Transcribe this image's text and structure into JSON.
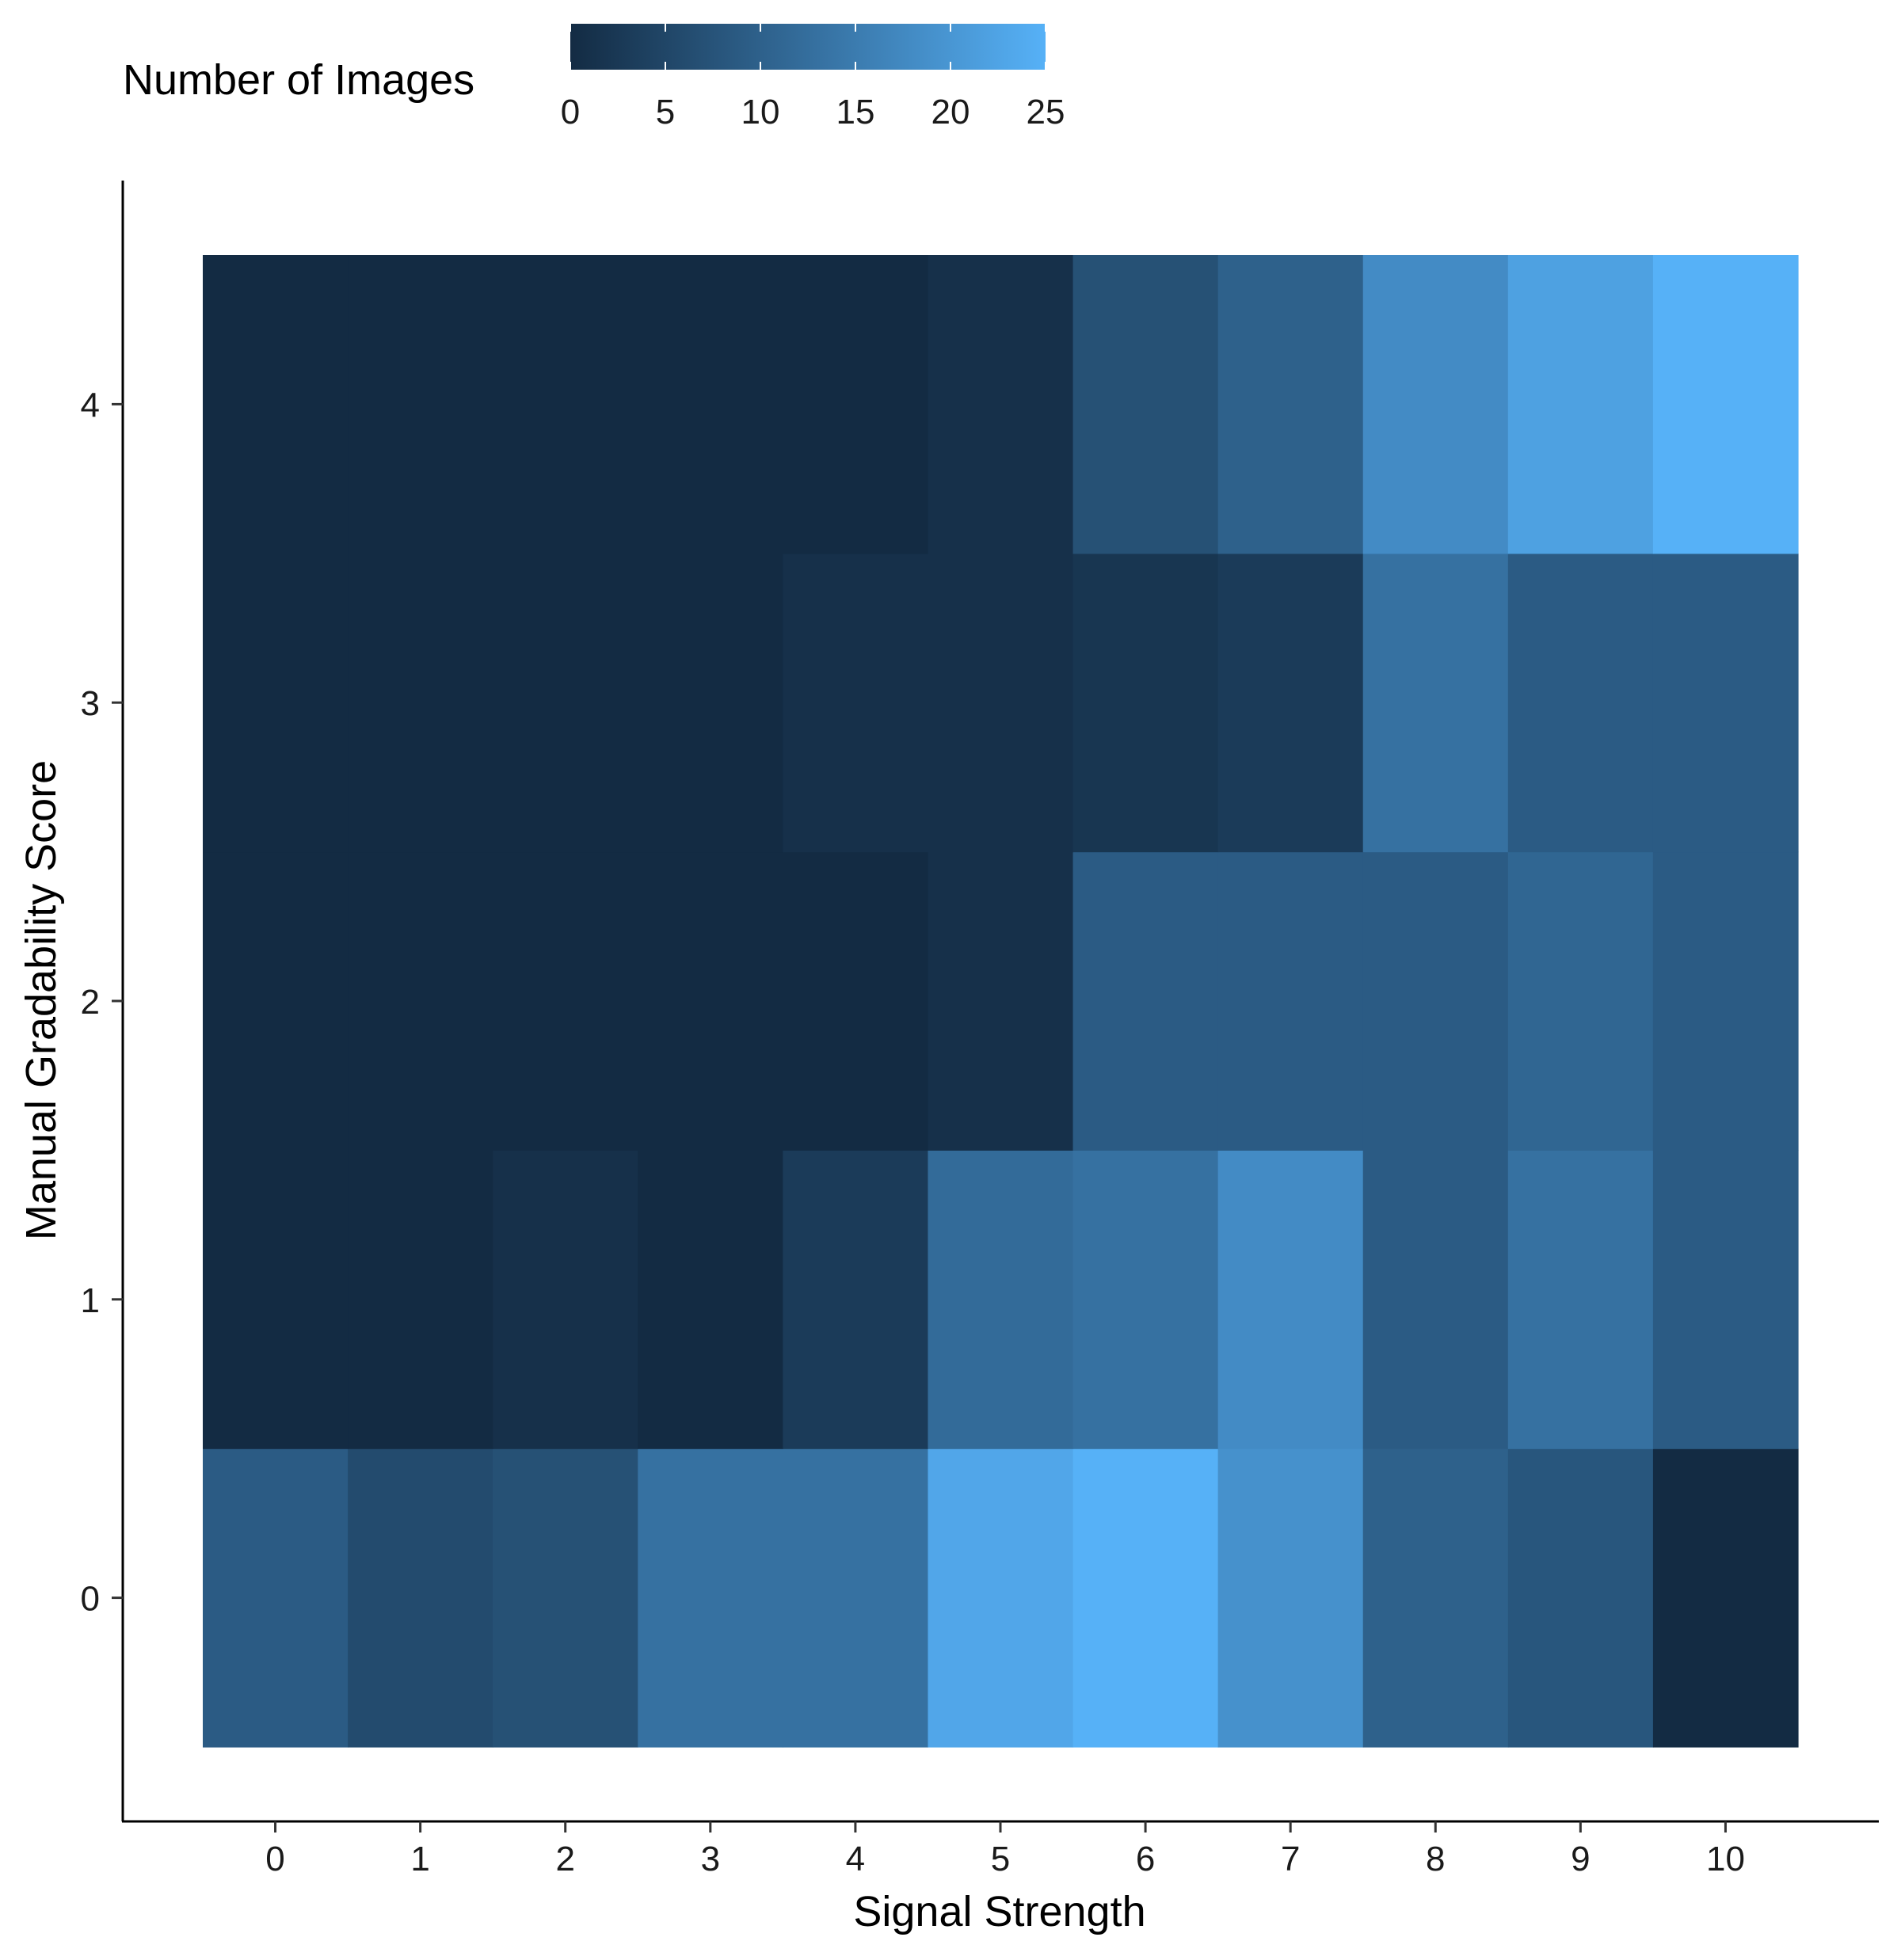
{
  "chart_data": {
    "type": "heatmap",
    "xlabel": "Signal Strength",
    "ylabel": "Manual Gradability Score",
    "x": [
      0,
      1,
      2,
      3,
      4,
      5,
      6,
      7,
      8,
      9,
      10
    ],
    "y": [
      0,
      1,
      2,
      3,
      4
    ],
    "x_tick_labels": [
      "0",
      "1",
      "2",
      "3",
      "4",
      "5",
      "6",
      "7",
      "8",
      "9",
      "10"
    ],
    "y_tick_labels": [
      "0",
      "1",
      "2",
      "3",
      "4"
    ],
    "values": [
      [
        9,
        6,
        7,
        13,
        13,
        23,
        26,
        19,
        10,
        8,
        0
      ],
      [
        0,
        0,
        1,
        0,
        3,
        12,
        13,
        18,
        9,
        13,
        9
      ],
      [
        0,
        0,
        0,
        0,
        0,
        1,
        9,
        9,
        9,
        11,
        9
      ],
      [
        0,
        0,
        0,
        0,
        1,
        1,
        2,
        3,
        13,
        9,
        9
      ],
      [
        0,
        0,
        0,
        0,
        0,
        1,
        7,
        10,
        18,
        22,
        26
      ]
    ],
    "legend": {
      "title": "Number of Images",
      "range": [
        0,
        25
      ],
      "ticks": [
        "0",
        "5",
        "10",
        "15",
        "20",
        "25"
      ],
      "placement": "top-left",
      "color_low": "#132b43",
      "color_high": "#56b1f7"
    },
    "grid": false
  }
}
